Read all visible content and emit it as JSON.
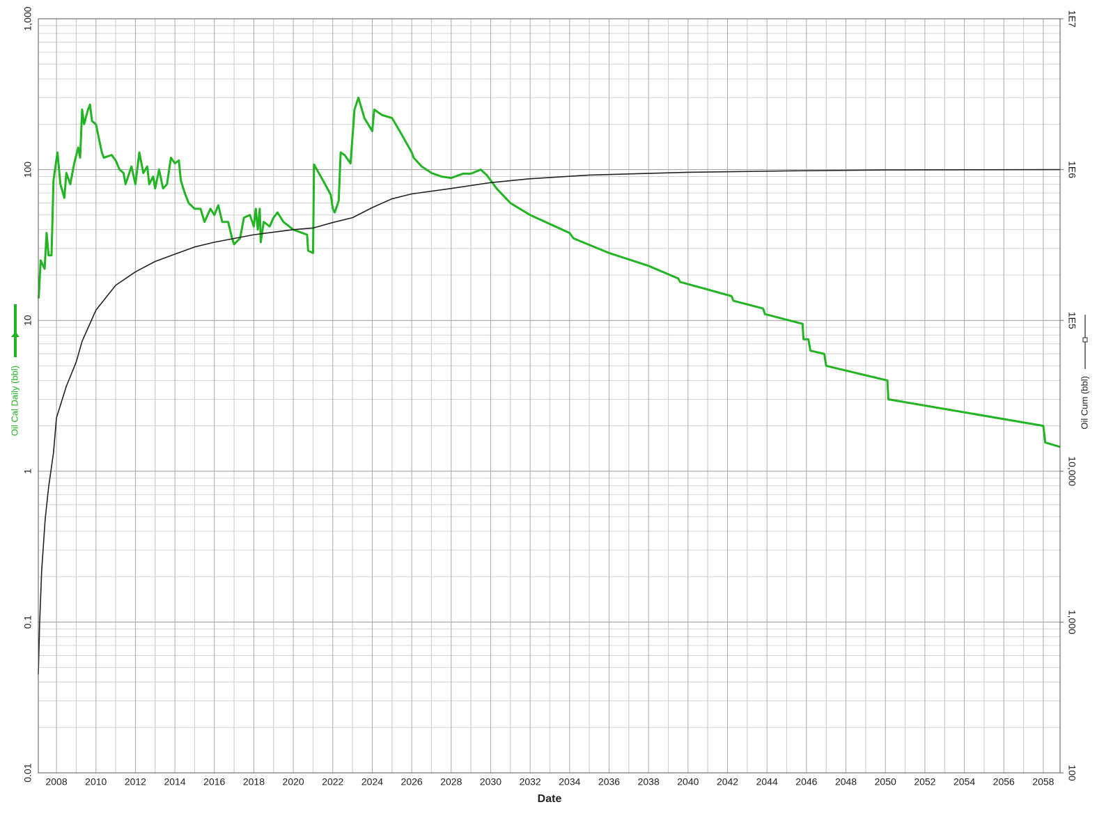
{
  "chart_data": {
    "type": "line",
    "xlabel": "Date",
    "xlim": [
      2007.08,
      2058.85
    ],
    "xticks": [
      2008,
      2010,
      2012,
      2014,
      2016,
      2018,
      2020,
      2022,
      2024,
      2026,
      2028,
      2030,
      2032,
      2034,
      2036,
      2038,
      2040,
      2042,
      2044,
      2046,
      2048,
      2050,
      2052,
      2054,
      2056,
      2058
    ],
    "ylim": [
      0.01,
      1000
    ],
    "yticks": [
      0.01,
      0.1,
      1,
      10,
      100,
      {
        "value": 1000,
        "label": "1,000"
      }
    ],
    "y2lim": [
      100,
      10000000
    ],
    "y2ticks": [
      100,
      {
        "value": 1000,
        "label": "1,000"
      },
      {
        "value": 10000,
        "label": "10,000"
      },
      {
        "value": 100000,
        "label": "1E5"
      },
      {
        "value": 1000000,
        "label": "1E6"
      },
      {
        "value": 10000000,
        "label": "1E7"
      }
    ],
    "log_scale": true,
    "grid": true,
    "minor_grid": true,
    "series": [
      {
        "name": "Oil Cal Daily (bbl)",
        "color": "#22b422",
        "axis": "y",
        "x": [
          2007.1,
          2007.2,
          2007.4,
          2007.5,
          2007.6,
          2007.75,
          2007.85,
          2008.05,
          2008.2,
          2008.4,
          2008.5,
          2008.7,
          2008.9,
          2009.1,
          2009.2,
          2009.3,
          2009.4,
          2009.6,
          2009.7,
          2009.8,
          2010.0,
          2010.3,
          2010.4,
          2010.8,
          2011.0,
          2011.2,
          2011.4,
          2011.5,
          2011.8,
          2012.0,
          2012.2,
          2012.4,
          2012.6,
          2012.7,
          2012.9,
          2013.0,
          2013.2,
          2013.4,
          2013.6,
          2013.8,
          2014.0,
          2014.2,
          2014.3,
          2014.5,
          2014.7,
          2015.0,
          2015.3,
          2015.5,
          2015.8,
          2016.0,
          2016.2,
          2016.4,
          2016.7,
          2016.9,
          2017.0,
          2017.3,
          2017.5,
          2017.8,
          2018.0,
          2018.1,
          2018.2,
          2018.3,
          2018.35,
          2018.5,
          2018.8,
          2019.0,
          2019.2,
          2019.5,
          2020.0,
          2020.7,
          2020.75,
          2021.0,
          2021.05,
          2021.5,
          2021.9,
          2022.0,
          2022.1,
          2022.3,
          2022.4,
          2022.6,
          2022.9,
          2023.1,
          2023.3,
          2023.6,
          2024.0,
          2024.1,
          2024.5,
          2025.0,
          2025.5,
          2026.0,
          2026.1,
          2026.5,
          2027.0,
          2027.5,
          2028.0,
          2028.6,
          2029.0,
          2029.5,
          2029.8,
          2030.3,
          2031.0,
          2032.0,
          2034.0,
          2034.2,
          2036.0,
          2038.0,
          2039.5,
          2039.6,
          2042.2,
          2042.3,
          2043.8,
          2043.9,
          2045.8,
          2045.85,
          2046.1,
          2046.2,
          2046.9,
          2047.0,
          2050.1,
          2050.15,
          2058.0,
          2058.1,
          2058.85
        ],
        "values": [
          14,
          25,
          22,
          38,
          27,
          27,
          85,
          130,
          80,
          65,
          95,
          80,
          110,
          140,
          120,
          250,
          200,
          250,
          270,
          210,
          200,
          130,
          120,
          125,
          115,
          100,
          95,
          80,
          105,
          80,
          130,
          95,
          105,
          80,
          90,
          75,
          100,
          75,
          80,
          120,
          110,
          115,
          85,
          70,
          60,
          55,
          55,
          45,
          55,
          50,
          58,
          45,
          45,
          35,
          32,
          35,
          48,
          50,
          42,
          55,
          40,
          55,
          33,
          45,
          42,
          48,
          52,
          45,
          40,
          37,
          29,
          28,
          108,
          85,
          68,
          55,
          52,
          62,
          130,
          125,
          110,
          250,
          300,
          220,
          180,
          250,
          230,
          220,
          170,
          130,
          120,
          105,
          95,
          90,
          88,
          94,
          94,
          100,
          92,
          75,
          60,
          50,
          38,
          35,
          28,
          23,
          19,
          18,
          14.5,
          13.5,
          12,
          11,
          9.5,
          7.5,
          7.5,
          6.3,
          6.0,
          5.0,
          4.0,
          3.0,
          2.0,
          1.55,
          1.45
        ]
      },
      {
        "name": "Oil Cum (bbl)",
        "color": "#222222",
        "axis": "y2",
        "x": [
          2007.08,
          2007.15,
          2007.25,
          2007.43,
          2007.6,
          2007.85,
          2008.0,
          2008.5,
          2009.0,
          2009.3,
          2010.0,
          2011.0,
          2012.0,
          2013.0,
          2014.0,
          2015.0,
          2016.0,
          2018.0,
          2020.0,
          2021.0,
          2022.0,
          2023.0,
          2024.0,
          2025.0,
          2026.0,
          2028.0,
          2030.0,
          2032.0,
          2035.0,
          2040.0,
          2045.0,
          2050.0,
          2058.85
        ],
        "values": [
          450,
          1000,
          2190,
          4840,
          7800,
          13300,
          22600,
          36600,
          53000,
          72800,
          117000,
          171000,
          210000,
          246000,
          275000,
          307000,
          330000,
          370000,
          400000,
          410000,
          446000,
          480000,
          560000,
          640000,
          690000,
          750000,
          820000,
          870000,
          920000,
          960000,
          980000,
          995000,
          1000000
        ]
      }
    ]
  }
}
